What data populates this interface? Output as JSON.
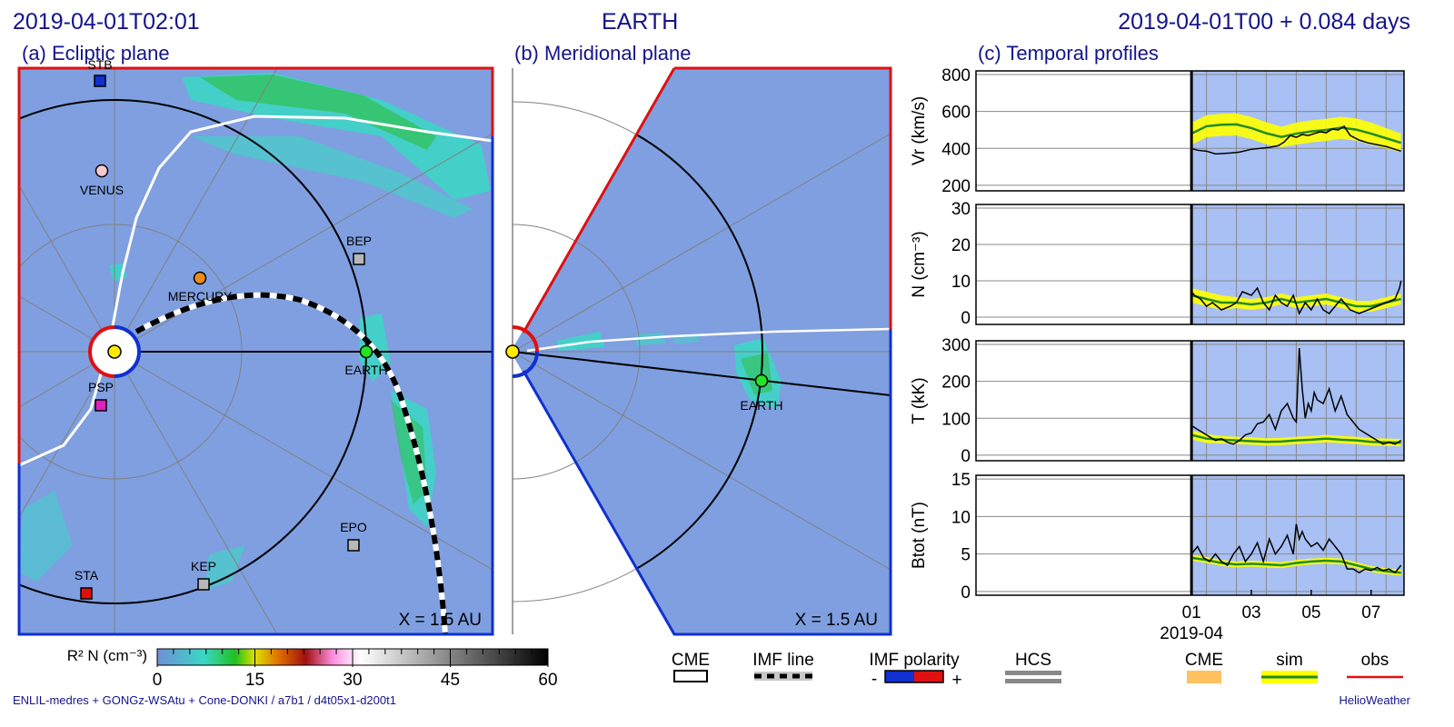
{
  "header": {
    "timestamp": "2019-04-01T02:01",
    "target": "EARTH",
    "run_time": "2019-04-01T00 +  0.084 days"
  },
  "panels": {
    "a_title": "(a) Ecliptic plane",
    "b_title": "(b) Meridional plane",
    "c_title": "(c) Temporal profiles",
    "scale_label": "X = 1.5 AU"
  },
  "bodies": [
    "STB",
    "VENUS",
    "MERCURY",
    "BEP",
    "EARTH",
    "PSP",
    "EPO",
    "KEP",
    "STA"
  ],
  "colors": {
    "density_background": "#7f9fe0",
    "density_high": "#3ad8c4",
    "earth": "#22e622",
    "sun": "#ffeb00",
    "sta": "#e01010",
    "stb": "#1030d0",
    "psp": "#e020c0",
    "venus": "#f8c8d0",
    "mercury": "#ee8c1a",
    "sim": "#228b22",
    "sim_band": "#ffff00",
    "obs": "#e01010",
    "cme": "#ffc060"
  },
  "colorbar": {
    "label": "R² N (cm⁻³)",
    "ticks": [
      "0",
      "15",
      "30",
      "45",
      "60"
    ]
  },
  "legend": {
    "cme": "CME",
    "imf_line": "IMF line",
    "imf_polarity": "IMF polarity",
    "polarity_minus": "-",
    "polarity_plus": "+",
    "hcs": "HCS",
    "cme_right": "CME",
    "sim": "sim",
    "obs": "obs"
  },
  "footer": {
    "model": "ENLIL-medres + GONGz-WSAtu + Cone-DONKI / a7b1 / d4t05x1-d200t1",
    "brand": "HelioWeather"
  },
  "chart_data": {
    "type": "line",
    "x_axis": {
      "ticks": [
        "01",
        "03",
        "05",
        "07"
      ],
      "tick_days": [
        1,
        3,
        5,
        7
      ],
      "month_label": "2019-04",
      "range_days": [
        -6.2,
        8.1
      ],
      "current_day": 1.084
    },
    "series_days": [
      1.0,
      1.5,
      2.0,
      2.5,
      3.0,
      3.5,
      4.0,
      4.5,
      5.0,
      5.5,
      6.0,
      6.5,
      7.0,
      7.5,
      8.0
    ],
    "panels": [
      {
        "ylabel": "Vr (km/s)",
        "ylim": [
          170,
          820
        ],
        "yticks": [
          "200",
          "400",
          "600",
          "800"
        ],
        "ytick_values": [
          200,
          400,
          600,
          800
        ],
        "sim": [
          480,
          520,
          528,
          530,
          510,
          482,
          462,
          480,
          492,
          500,
          512,
          502,
          480,
          455,
          430
        ],
        "sim_band": [
          60,
          60,
          60,
          60,
          60,
          60,
          55,
          60,
          60,
          60,
          60,
          60,
          60,
          55,
          50
        ],
        "obs_days": [
          1.0,
          1.2,
          1.5,
          1.8,
          2.0,
          2.3,
          2.6,
          3.0,
          3.3,
          3.6,
          3.9,
          4.1,
          4.3,
          4.5,
          4.7,
          4.9,
          5.1,
          5.3,
          5.5,
          5.7,
          5.9,
          6.1,
          6.3,
          6.6,
          6.9,
          7.2,
          7.5,
          7.8,
          8.0
        ],
        "obs": [
          400,
          390,
          385,
          370,
          372,
          375,
          380,
          395,
          400,
          405,
          415,
          435,
          470,
          460,
          475,
          470,
          480,
          490,
          485,
          505,
          500,
          520,
          470,
          445,
          430,
          420,
          410,
          395,
          385
        ]
      },
      {
        "ylabel": "N (cm⁻³)",
        "ylim": [
          -2,
          31
        ],
        "yticks": [
          "0",
          "10",
          "20",
          "30"
        ],
        "ytick_values": [
          0,
          10,
          20,
          30
        ],
        "sim": [
          6,
          5,
          4,
          4,
          3.5,
          4,
          5,
          4,
          4.5,
          5,
          4,
          3,
          3,
          4,
          5
        ],
        "sim_band": [
          2,
          2,
          2,
          1.5,
          1.5,
          1.5,
          1.5,
          1.5,
          1.5,
          1.5,
          1.5,
          1.5,
          1.5,
          1.5,
          1.5
        ],
        "obs_days": [
          1.0,
          1.1,
          1.3,
          1.5,
          1.7,
          2.0,
          2.3,
          2.5,
          2.7,
          3.0,
          3.2,
          3.4,
          3.6,
          3.8,
          4.0,
          4.2,
          4.4,
          4.6,
          4.8,
          5.0,
          5.2,
          5.4,
          5.6,
          5.8,
          6.0,
          6.3,
          6.6,
          6.9,
          7.2,
          7.5,
          7.8,
          7.95,
          8.0
        ],
        "obs": [
          7,
          6,
          5,
          3,
          4,
          2,
          3,
          4,
          7,
          6,
          8,
          4,
          2,
          6,
          4,
          3,
          6,
          1,
          4,
          2,
          5,
          2,
          1,
          3,
          5,
          2,
          1,
          2,
          3,
          4,
          5,
          8,
          10
        ]
      },
      {
        "ylabel": "T (kK)",
        "ylim": [
          -15,
          310
        ],
        "yticks": [
          "0",
          "100",
          "200",
          "300"
        ],
        "ytick_values": [
          0,
          100,
          200,
          300
        ],
        "sim": [
          55,
          45,
          42,
          40,
          38,
          36,
          37,
          40,
          42,
          45,
          42,
          40,
          36,
          35,
          34
        ],
        "sim_band": [
          12,
          12,
          10,
          10,
          10,
          10,
          10,
          10,
          10,
          10,
          10,
          10,
          10,
          10,
          10
        ],
        "obs_days": [
          1.0,
          1.2,
          1.4,
          1.6,
          1.8,
          2.0,
          2.2,
          2.4,
          2.6,
          2.8,
          3.0,
          3.2,
          3.4,
          3.6,
          3.8,
          4.0,
          4.2,
          4.4,
          4.5,
          4.6,
          4.7,
          4.8,
          4.9,
          5.0,
          5.1,
          5.2,
          5.4,
          5.6,
          5.8,
          6.0,
          6.2,
          6.4,
          6.6,
          6.8,
          7.0,
          7.2,
          7.4,
          7.6,
          7.8,
          8.0
        ],
        "obs": [
          80,
          70,
          60,
          50,
          40,
          45,
          35,
          30,
          40,
          55,
          60,
          85,
          90,
          110,
          70,
          120,
          140,
          100,
          90,
          290,
          180,
          100,
          140,
          120,
          170,
          150,
          140,
          180,
          120,
          160,
          110,
          90,
          70,
          60,
          50,
          40,
          30,
          35,
          30,
          40
        ]
      },
      {
        "ylabel": "Btot (nT)",
        "ylim": [
          -0.5,
          15.5
        ],
        "yticks": [
          "0",
          "5",
          "10",
          "15"
        ],
        "ytick_values": [
          0,
          5,
          10,
          15
        ],
        "sim": [
          4.5,
          4.2,
          3.8,
          3.6,
          3.7,
          3.6,
          3.5,
          3.8,
          4.0,
          4.1,
          4.0,
          3.5,
          3.0,
          2.7,
          2.5
        ],
        "sim_band": [
          0.4,
          0.4,
          0.4,
          0.4,
          0.4,
          0.4,
          0.4,
          0.4,
          0.4,
          0.4,
          0.4,
          0.4,
          0.4,
          0.4,
          0.4
        ],
        "obs_days": [
          1.0,
          1.2,
          1.4,
          1.6,
          1.8,
          2.0,
          2.2,
          2.4,
          2.6,
          2.8,
          3.0,
          3.2,
          3.4,
          3.6,
          3.8,
          4.0,
          4.2,
          4.4,
          4.5,
          4.6,
          4.7,
          4.8,
          5.0,
          5.2,
          5.4,
          5.6,
          5.8,
          6.0,
          6.2,
          6.4,
          6.6,
          6.8,
          7.0,
          7.2,
          7.4,
          7.6,
          7.8,
          8.0
        ],
        "obs": [
          5,
          6,
          4.5,
          4,
          5,
          4,
          3.5,
          5,
          6,
          4,
          5,
          6.5,
          4,
          7,
          5,
          6,
          7.5,
          5,
          9,
          7,
          8,
          7,
          6,
          6.5,
          5.5,
          7,
          6,
          5,
          3,
          3,
          2.5,
          3,
          2.8,
          3.2,
          2.8,
          3,
          2.5,
          3.5
        ]
      }
    ]
  }
}
